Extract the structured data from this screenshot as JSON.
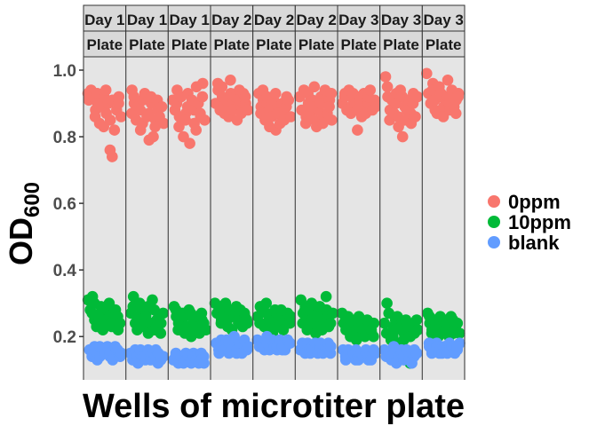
{
  "chart_data": {
    "type": "scatter",
    "title": "",
    "xlabel": "Wells of microtiter plate",
    "ylabel_main": "OD",
    "ylabel_sub": "600",
    "ylim": [
      0.07,
      1.04
    ],
    "yticks": [
      "0.2",
      "0.4",
      "0.6",
      "0.8",
      "1.0"
    ],
    "ytick_values": [
      0.2,
      0.4,
      0.6,
      0.8,
      1.0
    ],
    "grid": false,
    "legend_position": "right",
    "facet_strip_top": [
      "Day 1",
      "Day 1",
      "Day 1",
      "Day 2",
      "Day 2",
      "Day 2",
      "Day 3",
      "Day 3",
      "Day 3"
    ],
    "facet_strip_bottom": [
      "Plate",
      "Plate",
      "Plate",
      "Plate",
      "Plate",
      "Plate",
      "Plate",
      "Plate",
      "Plate"
    ],
    "series": [
      {
        "name": "0ppm",
        "color": "#F8766D",
        "panels": [
          [
            0.93,
            0.91,
            0.94,
            0.92,
            0.88,
            0.9,
            0.86,
            0.93,
            0.84,
            0.89,
            0.92,
            0.87,
            0.83,
            0.94,
            0.9,
            0.85,
            0.91,
            0.76,
            0.74,
            0.82,
            0.88,
            0.92,
            0.86,
            0.9
          ],
          [
            0.94,
            0.9,
            0.87,
            0.92,
            0.85,
            0.89,
            0.82,
            0.91,
            0.88,
            0.84,
            0.93,
            0.86,
            0.79,
            0.9,
            0.87,
            0.92,
            0.8,
            0.85,
            0.88,
            0.83,
            0.91,
            0.86,
            0.89,
            0.84
          ],
          [
            0.91,
            0.88,
            0.94,
            0.86,
            0.9,
            0.83,
            0.92,
            0.8,
            0.87,
            0.93,
            0.85,
            0.89,
            0.78,
            0.91,
            0.84,
            0.95,
            0.88,
            0.82,
            0.9,
            0.86,
            0.96,
            0.87,
            0.92,
            0.85
          ],
          [
            0.94,
            0.9,
            0.96,
            0.88,
            0.92,
            0.87,
            0.95,
            0.89,
            0.91,
            0.86,
            0.93,
            0.9,
            0.97,
            0.88,
            0.92,
            0.85,
            0.94,
            0.89,
            0.91,
            0.87,
            0.93,
            0.9,
            0.88,
            0.92
          ],
          [
            0.93,
            0.89,
            0.91,
            0.87,
            0.94,
            0.85,
            0.9,
            0.83,
            0.92,
            0.88,
            0.86,
            0.91,
            0.82,
            0.89,
            0.93,
            0.87,
            0.84,
            0.9,
            0.88,
            0.92,
            0.85,
            0.89,
            0.91,
            0.86
          ],
          [
            0.92,
            0.88,
            0.94,
            0.86,
            0.9,
            0.84,
            0.93,
            0.87,
            0.91,
            0.85,
            0.89,
            0.95,
            0.83,
            0.88,
            0.92,
            0.86,
            0.9,
            0.84,
            0.94,
            0.87,
            0.91,
            0.85,
            0.89,
            0.93
          ],
          [
            0.93,
            0.9,
            0.92,
            0.88,
            0.94,
            0.89,
            0.91,
            0.87,
            0.93,
            0.9,
            0.82,
            0.92,
            0.88,
            0.91,
            0.86,
            0.93,
            0.89,
            0.9,
            0.87,
            0.92,
            0.94,
            0.88,
            0.91,
            0.89
          ],
          [
            0.98,
            0.92,
            0.88,
            0.95,
            0.85,
            0.91,
            0.87,
            0.93,
            0.83,
            0.9,
            0.86,
            0.94,
            0.8,
            0.89,
            0.92,
            0.85,
            0.88,
            0.91,
            0.84,
            0.93,
            0.87,
            0.9,
            0.86,
            0.92
          ],
          [
            0.99,
            0.93,
            0.9,
            0.96,
            0.88,
            0.94,
            0.91,
            0.87,
            0.95,
            0.92,
            0.89,
            0.93,
            0.86,
            0.91,
            0.97,
            0.88,
            0.92,
            0.9,
            0.94,
            0.89,
            0.91,
            0.93,
            0.87,
            0.92
          ]
        ]
      },
      {
        "name": "10ppm",
        "color": "#00BA38",
        "panels": [
          [
            0.31,
            0.28,
            0.32,
            0.25,
            0.27,
            0.3,
            0.23,
            0.26,
            0.29,
            0.24,
            0.27,
            0.22,
            0.25,
            0.28,
            0.26,
            0.23,
            0.3,
            0.24,
            0.27,
            0.25,
            0.22,
            0.28,
            0.26,
            0.24
          ],
          [
            0.32,
            0.27,
            0.29,
            0.24,
            0.26,
            0.3,
            0.22,
            0.25,
            0.28,
            0.23,
            0.27,
            0.21,
            0.26,
            0.29,
            0.24,
            0.31,
            0.22,
            0.25,
            0.28,
            0.23,
            0.26,
            0.24,
            0.27,
            0.21
          ],
          [
            0.29,
            0.26,
            0.24,
            0.28,
            0.22,
            0.25,
            0.27,
            0.21,
            0.24,
            0.26,
            0.23,
            0.28,
            0.2,
            0.25,
            0.27,
            0.22,
            0.24,
            0.26,
            0.23,
            0.25,
            0.21,
            0.27,
            0.24,
            0.22
          ],
          [
            0.3,
            0.27,
            0.29,
            0.25,
            0.28,
            0.24,
            0.26,
            0.3,
            0.23,
            0.27,
            0.25,
            0.28,
            0.22,
            0.26,
            0.29,
            0.24,
            0.27,
            0.25,
            0.28,
            0.23,
            0.26,
            0.24,
            0.27,
            0.25
          ],
          [
            0.29,
            0.26,
            0.24,
            0.28,
            0.23,
            0.27,
            0.25,
            0.3,
            0.22,
            0.26,
            0.24,
            0.28,
            0.21,
            0.25,
            0.27,
            0.23,
            0.26,
            0.24,
            0.28,
            0.22,
            0.25,
            0.27,
            0.24,
            0.26
          ],
          [
            0.31,
            0.27,
            0.29,
            0.24,
            0.28,
            0.22,
            0.26,
            0.3,
            0.23,
            0.25,
            0.28,
            0.21,
            0.27,
            0.24,
            0.26,
            0.29,
            0.22,
            0.25,
            0.28,
            0.23,
            0.32,
            0.26,
            0.24,
            0.27
          ],
          [
            0.27,
            0.24,
            0.22,
            0.26,
            0.2,
            0.23,
            0.25,
            0.21,
            0.24,
            0.22,
            0.26,
            0.19,
            0.23,
            0.25,
            0.21,
            0.24,
            0.22,
            0.2,
            0.25,
            0.23,
            0.21,
            0.24,
            0.22,
            0.2
          ],
          [
            0.3,
            0.24,
            0.21,
            0.27,
            0.19,
            0.23,
            0.25,
            0.2,
            0.22,
            0.26,
            0.18,
            0.24,
            0.21,
            0.23,
            0.19,
            0.25,
            0.22,
            0.2,
            0.24,
            0.12,
            0.23,
            0.21,
            0.25,
            0.22
          ],
          [
            0.27,
            0.24,
            0.22,
            0.26,
            0.21,
            0.25,
            0.23,
            0.2,
            0.24,
            0.22,
            0.26,
            0.21,
            0.23,
            0.25,
            0.2,
            0.24,
            0.22,
            0.26,
            0.21,
            0.23,
            0.25,
            0.22,
            0.24,
            0.21
          ]
        ]
      },
      {
        "name": "blank",
        "color": "#619CFF",
        "panels": [
          [
            0.16,
            0.14,
            0.17,
            0.15,
            0.16,
            0.13,
            0.17,
            0.15,
            0.14,
            0.16,
            0.15,
            0.17,
            0.14,
            0.16,
            0.15,
            0.13,
            0.17,
            0.16,
            0.14,
            0.15
          ],
          [
            0.15,
            0.13,
            0.16,
            0.14,
            0.15,
            0.12,
            0.16,
            0.14,
            0.13,
            0.15,
            0.14,
            0.16,
            0.13,
            0.15,
            0.14,
            0.12,
            0.16,
            0.15,
            0.13,
            0.14
          ],
          [
            0.14,
            0.13,
            0.15,
            0.12,
            0.14,
            0.13,
            0.15,
            0.12,
            0.13,
            0.14,
            0.13,
            0.15,
            0.12,
            0.14,
            0.13,
            0.12,
            0.15,
            0.14,
            0.13,
            0.12
          ],
          [
            0.18,
            0.16,
            0.19,
            0.15,
            0.17,
            0.16,
            0.19,
            0.15,
            0.17,
            0.18,
            0.16,
            0.2,
            0.15,
            0.17,
            0.16,
            0.18,
            0.15,
            0.19,
            0.16,
            0.17
          ],
          [
            0.19,
            0.17,
            0.18,
            0.16,
            0.2,
            0.17,
            0.18,
            0.16,
            0.19,
            0.17,
            0.16,
            0.18,
            0.17,
            0.19,
            0.16,
            0.18,
            0.17,
            0.16,
            0.19,
            0.18
          ],
          [
            0.18,
            0.16,
            0.17,
            0.15,
            0.18,
            0.16,
            0.17,
            0.15,
            0.16,
            0.18,
            0.15,
            0.17,
            0.16,
            0.18,
            0.15,
            0.17,
            0.16,
            0.15,
            0.18,
            0.17
          ],
          [
            0.16,
            0.14,
            0.15,
            0.13,
            0.16,
            0.14,
            0.15,
            0.13,
            0.14,
            0.16,
            0.13,
            0.15,
            0.14,
            0.16,
            0.13,
            0.15,
            0.14,
            0.13,
            0.16,
            0.15
          ],
          [
            0.16,
            0.14,
            0.15,
            0.13,
            0.17,
            0.14,
            0.15,
            0.12,
            0.14,
            0.16,
            0.13,
            0.15,
            0.14,
            0.16,
            0.13,
            0.15,
            0.14,
            0.12,
            0.16,
            0.15
          ],
          [
            0.18,
            0.16,
            0.17,
            0.15,
            0.16,
            0.18,
            0.15,
            0.17,
            0.16,
            0.15,
            0.17,
            0.16,
            0.18,
            0.15,
            0.16,
            0.17,
            0.15,
            0.16,
            0.18,
            0.17
          ]
        ]
      }
    ]
  }
}
